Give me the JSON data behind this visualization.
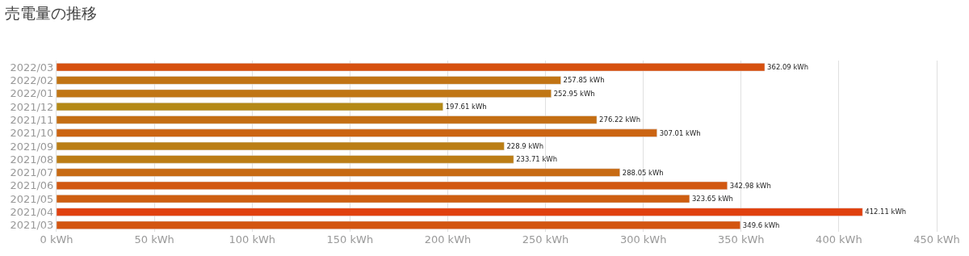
{
  "chart_data": {
    "type": "bar",
    "orientation": "horizontal",
    "title": "売電量の推移",
    "categories": [
      "2022/03",
      "2022/02",
      "2022/01",
      "2021/12",
      "2021/11",
      "2021/10",
      "2021/09",
      "2021/08",
      "2021/07",
      "2021/06",
      "2021/05",
      "2021/04",
      "2021/03"
    ],
    "values": [
      362.09,
      257.85,
      252.95,
      197.61,
      276.22,
      307.01,
      228.9,
      233.71,
      288.05,
      342.98,
      323.65,
      412.11,
      349.6
    ],
    "value_labels": [
      "362.09 kWh",
      "257.85 kWh",
      "252.95 kWh",
      "197.61 kWh",
      "276.22 kWh",
      "307.01 kWh",
      "228.9 kWh",
      "233.71 kWh",
      "288.05 kWh",
      "342.98 kWh",
      "323.65 kWh",
      "412.11 kWh",
      "349.6 kWh"
    ],
    "colors": [
      "#d65110",
      "#c17414",
      "#c07614",
      "#b48916",
      "#c46e13",
      "#cb6412",
      "#bb7e15",
      "#bc7d15",
      "#c76a13",
      "#d25811",
      "#ce5e11",
      "#e0400e",
      "#d35510"
    ],
    "xlim": [
      0,
      450
    ],
    "xticks": [
      {
        "value": 0,
        "label": "0 kWh"
      },
      {
        "value": 50,
        "label": "50 kWh"
      },
      {
        "value": 100,
        "label": "100 kWh"
      },
      {
        "value": 150,
        "label": "150 kWh"
      },
      {
        "value": 200,
        "label": "200 kWh"
      },
      {
        "value": 250,
        "label": "250 kWh"
      },
      {
        "value": 300,
        "label": "300 kWh"
      },
      {
        "value": 350,
        "label": "350 kWh"
      },
      {
        "value": 400,
        "label": "400 kWh"
      },
      {
        "value": 450,
        "label": "450 kWh"
      }
    ],
    "grid": "x"
  }
}
